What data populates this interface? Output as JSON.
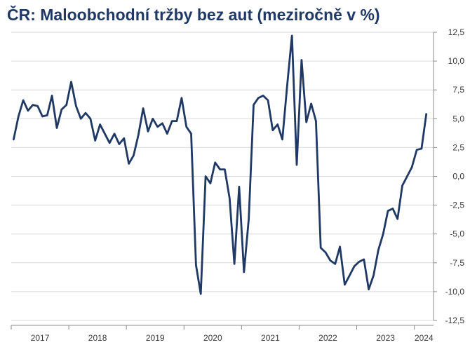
{
  "chart_data": {
    "type": "line",
    "title": "ČR: Maloobchodní tržby bez aut (meziročně v %)",
    "xlabel": "",
    "ylabel": "",
    "ylim": [
      -12.5,
      12.5
    ],
    "y_ticks": [
      12.5,
      10.0,
      7.5,
      5.0,
      2.5,
      0.0,
      -2.5,
      -5.0,
      -7.5,
      -10.0,
      -12.5
    ],
    "y_tick_labels": [
      "12,5",
      "10,0",
      "7,5",
      "5,0",
      "2,5",
      "0,0",
      "-2,5",
      "-5,0",
      "-7,5",
      "-10,0",
      "-12,5"
    ],
    "x_categories": [
      "2017",
      "2018",
      "2019",
      "2020",
      "2021",
      "2022",
      "2023",
      "2024"
    ],
    "grid": "horizontal",
    "series_color": "#1f3864",
    "series": [
      {
        "x": [
          "2017-01",
          "2017-02",
          "2017-03",
          "2017-04",
          "2017-05",
          "2017-06",
          "2017-07",
          "2017-08",
          "2017-09",
          "2017-10",
          "2017-11",
          "2017-12",
          "2018-01",
          "2018-02",
          "2018-03",
          "2018-04",
          "2018-05",
          "2018-06",
          "2018-07",
          "2018-08",
          "2018-09",
          "2018-10",
          "2018-11",
          "2018-12",
          "2019-01",
          "2019-02",
          "2019-03",
          "2019-04",
          "2019-05",
          "2019-06",
          "2019-07",
          "2019-08",
          "2019-09",
          "2019-10",
          "2019-11",
          "2019-12",
          "2020-01",
          "2020-02",
          "2020-03",
          "2020-04",
          "2020-05",
          "2020-06",
          "2020-07",
          "2020-08",
          "2020-09",
          "2020-10",
          "2020-11",
          "2020-12",
          "2021-01",
          "2021-02",
          "2021-03",
          "2021-04",
          "2021-05",
          "2021-06",
          "2021-07",
          "2021-08",
          "2021-09",
          "2021-10",
          "2021-11",
          "2021-12",
          "2022-01",
          "2022-02",
          "2022-03",
          "2022-04",
          "2022-05",
          "2022-06",
          "2022-07",
          "2022-08",
          "2022-09",
          "2022-10",
          "2022-11",
          "2022-12",
          "2023-01",
          "2023-02",
          "2023-03",
          "2023-04",
          "2023-05",
          "2023-06",
          "2023-07",
          "2023-08",
          "2023-09",
          "2023-10",
          "2023-11",
          "2023-12",
          "2024-01",
          "2024-02",
          "2024-03"
        ],
        "values": [
          3.2,
          5.2,
          6.6,
          5.7,
          6.2,
          6.1,
          5.2,
          5.3,
          7.0,
          4.2,
          5.8,
          6.2,
          8.2,
          6.1,
          5.0,
          5.5,
          5.0,
          3.1,
          4.5,
          3.7,
          2.9,
          3.7,
          2.8,
          3.3,
          1.1,
          1.8,
          3.6,
          5.9,
          3.9,
          5.0,
          4.3,
          4.6,
          3.7,
          4.8,
          4.8,
          6.8,
          4.3,
          3.7,
          -7.7,
          -10.2,
          0.0,
          -0.6,
          1.2,
          0.6,
          0.6,
          -1.9,
          -7.6,
          -0.9,
          -8.3,
          -3.7,
          6.2,
          6.8,
          7.0,
          6.6,
          4.0,
          4.5,
          3.2,
          7.9,
          12.2,
          1.0,
          10.1,
          4.7,
          6.3,
          4.8,
          -6.2,
          -6.6,
          -7.3,
          -7.6,
          -6.1,
          -9.4,
          -8.6,
          -7.8,
          -7.4,
          -7.2,
          -9.8,
          -8.6,
          -6.4,
          -5.0,
          -3.0,
          -2.8,
          -3.7,
          -0.8,
          0.0,
          0.8,
          2.3,
          2.4,
          5.4
        ]
      }
    ]
  }
}
